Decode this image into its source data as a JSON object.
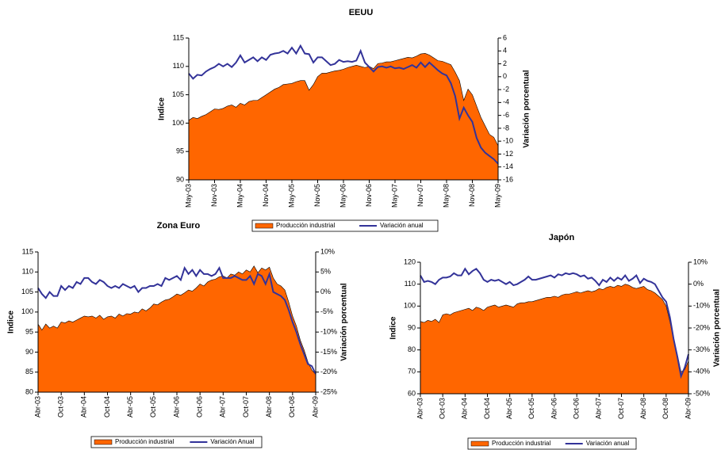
{
  "chart_data": [
    {
      "type": "area-line",
      "title": "EEUU",
      "ylabel": "Indice",
      "y2label": "Variación porcentual",
      "categories": [
        "May-03",
        null,
        null,
        null,
        null,
        null,
        "Nov-03",
        null,
        null,
        null,
        null,
        null,
        "May-04",
        null,
        null,
        null,
        null,
        null,
        "Nov-04",
        null,
        null,
        null,
        null,
        null,
        "May-05",
        null,
        null,
        null,
        null,
        null,
        "Nov-05",
        null,
        null,
        null,
        null,
        null,
        "May-06",
        null,
        null,
        null,
        null,
        null,
        "Nov-06",
        null,
        null,
        null,
        null,
        null,
        "May-07",
        null,
        null,
        null,
        null,
        null,
        "Nov-07",
        null,
        null,
        null,
        null,
        null,
        "May-08",
        null,
        null,
        null,
        null,
        null,
        "Nov-08",
        null,
        null,
        null,
        null,
        null,
        "May-09"
      ],
      "series": [
        {
          "name": "Producción industrial",
          "color": "#ff6600",
          "values": [
            100.5,
            101.0,
            100.8,
            101.2,
            101.5,
            102.0,
            102.5,
            102.4,
            102.6,
            103.0,
            103.2,
            102.8,
            103.5,
            103.2,
            103.8,
            104.0,
            104.0,
            104.5,
            105.0,
            105.5,
            106.0,
            106.3,
            106.8,
            106.9,
            107.0,
            107.3,
            107.5,
            107.5,
            105.8,
            106.8,
            108.2,
            108.8,
            108.8,
            109.0,
            109.2,
            109.3,
            109.5,
            109.8,
            110.0,
            110.2,
            110.0,
            109.8,
            110.0,
            109.6,
            110.5,
            110.6,
            110.8,
            110.8,
            111.0,
            111.2,
            111.4,
            111.6,
            111.5,
            111.8,
            112.2,
            112.3,
            112.0,
            111.5,
            111.0,
            110.9,
            110.6,
            110.3,
            109.0,
            107.5,
            104.0,
            106.0,
            105.0,
            103.0,
            101.0,
            99.5,
            98.0,
            97.5,
            96.0
          ]
        },
        {
          "name": "Variación anual",
          "color": "#333399",
          "axis": "y2",
          "values": [
            0.5,
            -0.3,
            0.3,
            0.2,
            0.8,
            1.2,
            1.5,
            2.0,
            1.6,
            2.0,
            1.5,
            2.2,
            3.3,
            2.2,
            2.6,
            3.0,
            2.4,
            3.0,
            2.6,
            3.4,
            3.6,
            3.7,
            4.0,
            3.6,
            4.5,
            3.6,
            4.8,
            3.6,
            3.5,
            2.2,
            3.0,
            3.0,
            2.4,
            1.8,
            2.0,
            2.6,
            2.3,
            2.4,
            2.3,
            2.5,
            4.0,
            2.2,
            1.5,
            0.8,
            1.5,
            1.6,
            1.4,
            1.6,
            1.3,
            1.4,
            1.2,
            1.5,
            1.8,
            1.4,
            2.2,
            1.5,
            2.2,
            1.6,
            1.0,
            0.5,
            0.2,
            -1.0,
            -3.0,
            -6.5,
            -4.8,
            -6.0,
            -7.0,
            -9.5,
            -11.0,
            -11.8,
            -12.3,
            -12.8,
            -13.5
          ]
        }
      ],
      "ylim": [
        90,
        115
      ],
      "yticks": [
        90,
        95,
        100,
        105,
        110,
        115
      ],
      "y2lim": [
        -16,
        6
      ],
      "y2ticks": [
        -16,
        -14,
        -12,
        -10,
        -8,
        -6,
        -4,
        -2,
        0,
        2,
        4,
        6
      ]
    },
    {
      "type": "area-line",
      "title": "Zona Euro",
      "ylabel": "Indice",
      "y2label": "Variación porcentual",
      "categories": [
        "Abr-03",
        null,
        null,
        null,
        null,
        null,
        "Oct-03",
        null,
        null,
        null,
        null,
        null,
        "Abr-04",
        null,
        null,
        null,
        null,
        null,
        "Oct-04",
        null,
        null,
        null,
        null,
        null,
        "Abr-05",
        null,
        null,
        null,
        null,
        null,
        "Oct-05",
        null,
        null,
        null,
        null,
        null,
        "Abr-06",
        null,
        null,
        null,
        null,
        null,
        "Oct-06",
        null,
        null,
        null,
        null,
        null,
        "Abr-07",
        null,
        null,
        null,
        null,
        null,
        "Oct-07",
        null,
        null,
        null,
        null,
        null,
        "Abr-08",
        null,
        null,
        null,
        null,
        null,
        "Oct-08",
        null,
        null,
        null,
        null,
        null,
        "Abr-09"
      ],
      "series": [
        {
          "name": "Producción industrial",
          "color": "#ff6600",
          "values": [
            97,
            95.5,
            97,
            96,
            96.5,
            96.0,
            97.5,
            97.3,
            97.8,
            97.5,
            98.0,
            98.5,
            99,
            98.8,
            99.0,
            98.5,
            99.2,
            98.2,
            98.8,
            99.0,
            98.5,
            99.5,
            99.0,
            99.6,
            99.5,
            100.0,
            99.8,
            100.8,
            100.3,
            101.0,
            102.0,
            101.8,
            102.5,
            103.0,
            103.2,
            103.8,
            104.5,
            104.2,
            104.8,
            105.5,
            105.2,
            106.0,
            107.0,
            106.5,
            107.5,
            108.0,
            108.2,
            108.8,
            109.0,
            108.5,
            109.5,
            109.2,
            110.0,
            109.5,
            110.5,
            110.0,
            111.5,
            109.8,
            111.0,
            110.5,
            111.2,
            108.5,
            107.0,
            106.5,
            105.5,
            102.5,
            99.0,
            96.5,
            93.0,
            90.5,
            87.5,
            85.5,
            84.5
          ]
        },
        {
          "name": "Variación Anual",
          "color": "#333399",
          "axis": "y2",
          "values": [
            1.0,
            -0.5,
            -1.5,
            0.0,
            -1.0,
            -1.0,
            1.5,
            0.5,
            1.5,
            1.0,
            2.5,
            2.0,
            3.5,
            3.5,
            2.5,
            2.0,
            3.0,
            2.5,
            1.5,
            1.0,
            1.5,
            1.0,
            2.0,
            1.5,
            1.0,
            1.5,
            0.0,
            1.0,
            1.0,
            1.5,
            1.5,
            2.0,
            1.5,
            3.5,
            3.0,
            3.5,
            4.0,
            3.0,
            6.0,
            4.5,
            5.5,
            4.0,
            5.5,
            4.5,
            4.5,
            4.0,
            4.5,
            6.0,
            3.5,
            3.5,
            3.5,
            4.0,
            3.5,
            3.0,
            3.0,
            4.0,
            2.0,
            4.5,
            4.0,
            2.0,
            4.5,
            0.0,
            -0.5,
            -1.0,
            -2.0,
            -4.5,
            -7.5,
            -10.0,
            -13.0,
            -15.5,
            -18.0,
            -18.5,
            -20.5
          ]
        }
      ],
      "ylim": [
        80,
        115
      ],
      "yticks": [
        80,
        85,
        90,
        95,
        100,
        105,
        110,
        115
      ],
      "y2lim": [
        -25,
        10
      ],
      "y2ticks": [
        {
          "value": -25,
          "label": "-25%"
        },
        {
          "value": -20,
          "label": "-20%"
        },
        {
          "value": -15,
          "label": "-15%"
        },
        {
          "value": -10,
          "label": "-10%"
        },
        {
          "value": -5,
          "label": "-5%"
        },
        {
          "value": 0,
          "label": "0%"
        },
        {
          "value": 5,
          "label": "5%"
        },
        {
          "value": 10,
          "label": "10%"
        }
      ]
    },
    {
      "type": "area-line",
      "title": "Japón",
      "ylabel": "Indice",
      "y2label": "Variación porcentual",
      "categories": [
        "Abr-03",
        null,
        null,
        null,
        null,
        null,
        "Oct-03",
        null,
        null,
        null,
        null,
        null,
        "Abr-04",
        null,
        null,
        null,
        null,
        null,
        "Oct-04",
        null,
        null,
        null,
        null,
        null,
        "Abr-05",
        null,
        null,
        null,
        null,
        null,
        "Oct-05",
        null,
        null,
        null,
        null,
        null,
        "Abr-06",
        null,
        null,
        null,
        null,
        null,
        "Oct-06",
        null,
        null,
        null,
        null,
        null,
        "Abr-07",
        null,
        null,
        null,
        null,
        null,
        "Oct-07",
        null,
        null,
        null,
        null,
        null,
        "Abr-08",
        null,
        null,
        null,
        null,
        null,
        "Oct-08",
        null,
        null,
        null,
        null,
        null,
        "Abr-09"
      ],
      "series": [
        {
          "name": "Producción industrial",
          "color": "#ff6600",
          "values": [
            93,
            92.5,
            93.5,
            93,
            94,
            92.5,
            96,
            96.5,
            96,
            97,
            97.5,
            98,
            98.5,
            99,
            98,
            99.5,
            99,
            98,
            99.5,
            100,
            100.5,
            99.5,
            100,
            100.5,
            100,
            99.5,
            101,
            101.5,
            101.5,
            102,
            102,
            102.5,
            103,
            103.5,
            104,
            104,
            104.5,
            104,
            105,
            105.5,
            105.5,
            106,
            106.5,
            106,
            106.5,
            107,
            106.5,
            107,
            108,
            107.5,
            108.5,
            109,
            108.5,
            109.5,
            109,
            110,
            109.5,
            108.5,
            108,
            108.5,
            109,
            107.5,
            107,
            106,
            104.5,
            103,
            100,
            93,
            85,
            78,
            70,
            71,
            75
          ]
        },
        {
          "name": "Variación anual",
          "color": "#333399",
          "axis": "y2",
          "values": [
            4,
            1,
            1.5,
            1,
            0,
            2,
            3,
            3,
            3.5,
            5,
            4,
            4,
            7,
            4.5,
            6,
            7,
            5,
            2,
            1,
            2,
            1.5,
            2,
            1,
            0,
            1,
            -0.5,
            0,
            1,
            2,
            3.5,
            2,
            2,
            2.5,
            3,
            3.5,
            4,
            3,
            4.5,
            4,
            5,
            4.5,
            5,
            4.5,
            3.5,
            4,
            2.5,
            3,
            1.5,
            -0.5,
            2,
            1,
            3,
            1.5,
            3,
            2,
            4,
            1.5,
            2.5,
            4,
            0.5,
            2.5,
            1.5,
            1,
            0,
            -3,
            -6,
            -8,
            -15,
            -25,
            -33,
            -42,
            -38,
            -32
          ]
        }
      ],
      "ylim": [
        60,
        120
      ],
      "yticks": [
        60,
        70,
        80,
        90,
        100,
        110,
        120
      ],
      "y2lim": [
        -50,
        10
      ],
      "y2ticks": [
        {
          "value": -50,
          "label": "-50%"
        },
        {
          "value": -40,
          "label": "-40%"
        },
        {
          "value": -30,
          "label": "-30%"
        },
        {
          "value": -20,
          "label": "-20%"
        },
        {
          "value": -10,
          "label": "-10%"
        },
        {
          "value": 0,
          "label": "0%"
        },
        {
          "value": 10,
          "label": "10%"
        }
      ]
    }
  ]
}
